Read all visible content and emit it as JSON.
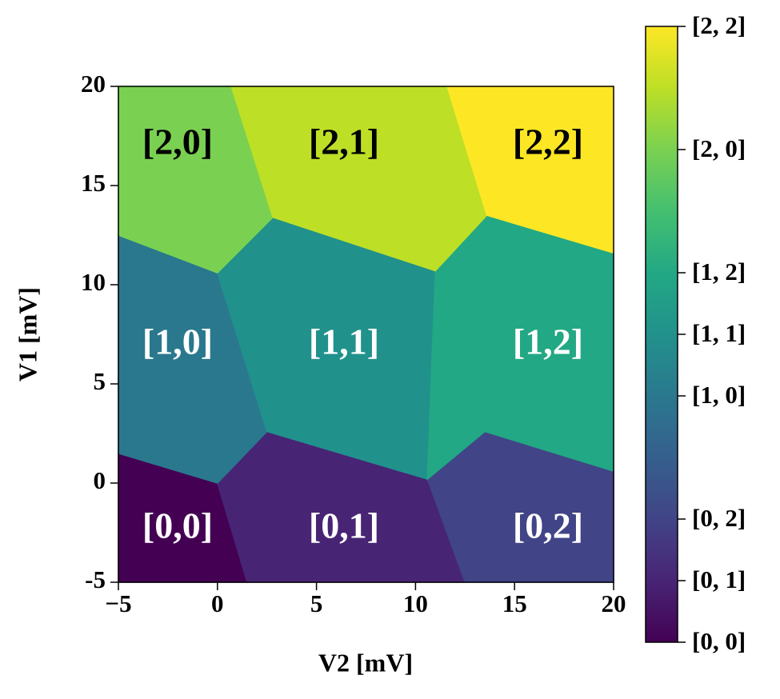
{
  "chart_data": {
    "type": "heatmap",
    "xlabel": "V2 [mV]",
    "ylabel": "V1 [mV]",
    "xlim": [
      -5,
      20
    ],
    "ylim": [
      -5,
      20
    ],
    "xticks": [
      {
        "value": -5,
        "label": "−5"
      },
      0,
      5,
      10,
      15,
      20
    ],
    "yticks": [
      -5,
      0,
      5,
      10,
      15,
      20
    ],
    "colormap": "viridis",
    "clim": [
      0,
      1
    ],
    "cticks": [
      {
        "value": 0,
        "label": "[0, 0]"
      },
      {
        "value": 0.1,
        "label": "[0, 1]"
      },
      {
        "value": 0.2,
        "label": "[0, 2]"
      },
      {
        "value": 0.4,
        "label": "[1, 0]"
      },
      {
        "value": 0.5,
        "label": "[1, 1]"
      },
      {
        "value": 0.6,
        "label": "[1, 2]"
      },
      {
        "value": 0.8,
        "label": "[2, 0]"
      },
      {
        "value": 1.0,
        "label": "[2, 2]"
      }
    ],
    "regions": [
      {
        "label": "[0,0]",
        "value": 0
      },
      {
        "label": "[0,1]",
        "value": 0.1
      },
      {
        "label": "[0,2]",
        "value": 0.2
      },
      {
        "label": "[1,0]",
        "value": 0.4
      },
      {
        "label": "[1,1]",
        "value": 0.5
      },
      {
        "label": "[1,2]",
        "value": 0.6
      },
      {
        "label": "[2,0]",
        "value": 0.8
      },
      {
        "label": "[2,1]",
        "value": 0.9
      },
      {
        "label": "[2,2]",
        "value": 1.0
      }
    ]
  }
}
